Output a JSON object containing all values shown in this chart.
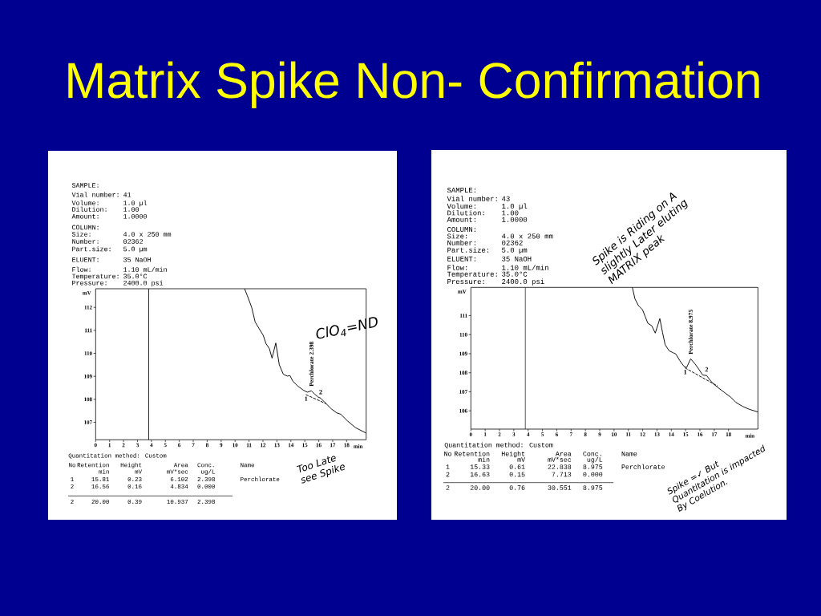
{
  "chart_data": [
    {
      "type": "other",
      "title": "Matrix Spike Non- Confirmation"
    },
    {
      "type": "line",
      "xlabel": "min",
      "ylabel": "mV",
      "xlim": [
        0,
        19.4
      ],
      "ylim": [
        106.24,
        112.81
      ],
      "xticks": [
        0,
        1,
        2,
        3,
        4,
        5,
        6,
        7,
        8,
        9,
        10,
        11,
        12,
        13,
        14,
        15,
        16,
        17,
        18
      ],
      "yticks": [
        107,
        108,
        109,
        110,
        111,
        112
      ],
      "series": [
        {
          "color": "#000000",
          "x": [
            10.68,
            10.87,
            11.19,
            11.44,
            11.73,
            12.02,
            12.21,
            12.46,
            12.65,
            12.92,
            13.17,
            13.46,
            13.74,
            13.94,
            14.13,
            14.51,
            14.89,
            15.18,
            15.47,
            15.72,
            15.95,
            16.14,
            16.43,
            16.91,
            17.29,
            17.58,
            18.06,
            18.63,
            19.4
          ],
          "values": [
            112.81,
            112.52,
            112.0,
            111.36,
            111.07,
            110.78,
            110.43,
            110.2,
            109.79,
            110.45,
            109.5,
            109.09,
            109.01,
            109.03,
            108.8,
            108.57,
            108.4,
            108.31,
            108.37,
            108.22,
            108.1,
            108.05,
            107.87,
            107.58,
            107.41,
            107.35,
            107.06,
            106.77,
            106.53
          ]
        },
        {
          "color": "#000000",
          "line_style": "dashed",
          "x": [
            15.09,
            16.52
          ],
          "values": [
            108.2,
            107.81
          ]
        }
      ],
      "ref_lines": [
        {
          "axis": "x",
          "value": 3.8,
          "color": "#000000"
        }
      ],
      "annotations": [
        {
          "text": "Perchlorate 2.398",
          "x": 15.47,
          "y": 108.37
        },
        {
          "text": "1",
          "x": 15.09,
          "y": 108.2
        },
        {
          "text": "2",
          "x": 16.14,
          "y": 108.05
        },
        "ClO$_{4}$=ND",
        "Too Late see Spike",
        "SAMPLE:",
        "Vial number:",
        "41",
        "Volume:",
        "1.0 µl",
        "Dilution:",
        "1.00",
        "Amount:",
        "1.0000",
        "COLUMN:",
        "Size:",
        "4.0 x 250 mm",
        "Number:",
        "02362",
        "Part.size:",
        "5.0 µm",
        "ELUENT:",
        "35 NaOH",
        "Flow:",
        "1.10 mL/min",
        "Temperature:",
        "35.0°C",
        "Pressure:",
        "2400.0 psi",
        "Quantitation method: Custom",
        "No",
        "Retention",
        "Height",
        "Area",
        "Conc.",
        "Name",
        "min",
        "mV",
        "mV*sec",
        "ug/L",
        "1",
        "15.81",
        "0.23",
        "6.102",
        "2.398",
        "Perchlorate",
        "2",
        "16.56",
        "0.16",
        "4.834",
        "0.000",
        "2",
        "20.00",
        "0.39",
        "10.937",
        "2.398"
      ]
    },
    {
      "type": "line",
      "xlabel": "min",
      "ylabel": "mV",
      "xlim": [
        0,
        20.05
      ],
      "ylim": [
        105.04,
        112.48
      ],
      "xticks": [
        0,
        1,
        2,
        3,
        4,
        5,
        6,
        7,
        8,
        9,
        10,
        11,
        12,
        13,
        14,
        15,
        16,
        17,
        18
      ],
      "yticks": [
        106,
        107,
        108,
        109,
        110,
        111
      ],
      "series": [
        {
          "color": "#000000",
          "x": [
            11.28,
            11.46,
            11.71,
            11.99,
            12.17,
            12.36,
            12.64,
            12.88,
            13.2,
            13.39,
            13.57,
            13.85,
            14.13,
            14.32,
            14.6,
            14.88,
            15.07,
            15.35,
            15.63,
            15.91,
            16.19,
            16.47,
            16.75,
            17.03,
            17.4,
            17.77,
            18.15,
            18.52,
            18.99,
            19.45,
            20.05
          ],
          "values": [
            112.48,
            111.88,
            111.52,
            111.31,
            110.96,
            110.6,
            110.46,
            110.08,
            110.84,
            110.11,
            109.47,
            109.15,
            109.05,
            108.98,
            108.63,
            108.34,
            108.27,
            108.73,
            108.49,
            108.2,
            107.88,
            107.85,
            107.57,
            107.36,
            107.14,
            106.93,
            106.72,
            106.44,
            106.23,
            106.08,
            105.94
          ]
        },
        {
          "color": "#000000",
          "line_style": "dashed",
          "x": [
            14.97,
            17.21
          ],
          "values": [
            108.25,
            107.31
          ]
        }
      ],
      "ref_lines": [
        {
          "axis": "x",
          "value": 3.8,
          "color": "#000000"
        }
      ],
      "annotations": [
        {
          "text": "Perchlorate 8.975",
          "x": 15.35,
          "y": 108.73
        },
        {
          "text": "1",
          "x": 14.97,
          "y": 108.25
        },
        {
          "text": "2",
          "x": 16.47,
          "y": 107.85
        },
        "Spike is Riding on A slightly Later eluting MATRIX peak",
        "Spike =✓ But Quantitation is impacted By Coelution.",
        "SAMPLE:",
        "Vial number:",
        "43",
        "Volume:",
        "1.0 µl",
        "Dilution:",
        "1.00",
        "Amount:",
        "1.0000",
        "COLUMN:",
        "Size:",
        "4.0 x 250 mm",
        "Number:",
        "02362",
        "Part.size:",
        "5.0 µm",
        "ELUENT:",
        "35 NaOH",
        "Flow:",
        "1.10 mL/min",
        "Temperature:",
        "35.0°C",
        "Pressure:",
        "2400.0 psi",
        "Quantitation method: Custom",
        "No",
        "Retention",
        "Height",
        "Area",
        "Conc.",
        "Name",
        "min",
        "mV",
        "mV*sec",
        "ug/L",
        "1",
        "15.33",
        "0.61",
        "22.838",
        "8.975",
        "Perchlorate",
        "2",
        "16.63",
        "0.15",
        "7.713",
        "0.000",
        "2",
        "20.00",
        "0.76",
        "30.551",
        "8.975"
      ]
    }
  ]
}
